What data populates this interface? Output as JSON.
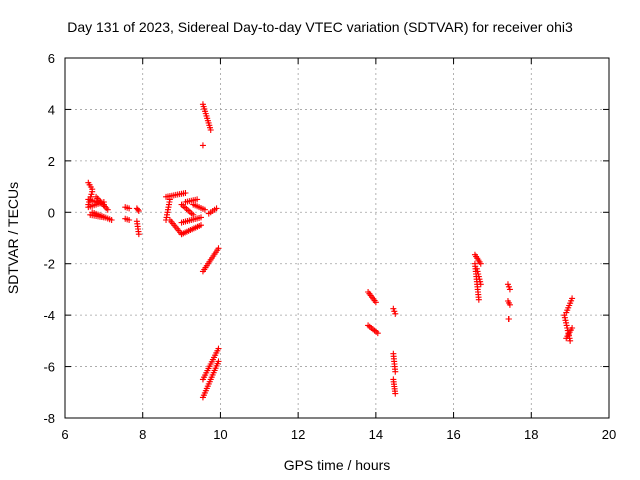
{
  "chart_data": {
    "type": "scatter",
    "title": "Day 131 of 2023, Sidereal Day-to-day VTEC variation (SDTVAR) for receiver ohi3",
    "xlabel": "GPS time / hours",
    "ylabel": "SDTVAR / TECUs",
    "xlim": [
      6,
      20
    ],
    "ylim": [
      -8,
      6
    ],
    "xticks": [
      6,
      8,
      10,
      12,
      14,
      16,
      18,
      20
    ],
    "yticks": [
      -8,
      -6,
      -4,
      -2,
      0,
      2,
      4,
      6
    ],
    "grid": true,
    "marker": "plus",
    "color": "#ff0000",
    "series": [
      {
        "name": "cluster-6.6h",
        "segments": [
          [
            6.6,
            1.15,
            6.7,
            0.9
          ],
          [
            6.6,
            0.5,
            7.0,
            0.3
          ],
          [
            6.6,
            0.2,
            7.0,
            0.4
          ],
          [
            6.65,
            -0.1,
            7.0,
            -0.2
          ],
          [
            6.7,
            0.0,
            7.2,
            -0.3
          ],
          [
            6.8,
            0.6,
            7.1,
            0.1
          ],
          [
            6.6,
            0.3,
            6.7,
            0.8
          ]
        ]
      },
      {
        "name": "cluster-7.6h",
        "segments": [
          [
            7.55,
            0.2,
            7.65,
            0.15
          ],
          [
            7.55,
            -0.25,
            7.65,
            -0.3
          ],
          [
            7.85,
            0.15,
            7.9,
            0.05
          ],
          [
            7.85,
            -0.35,
            7.9,
            -0.85
          ]
        ]
      },
      {
        "name": "arc-8.6h",
        "segments": [
          [
            8.6,
            0.6,
            9.1,
            0.75
          ],
          [
            8.6,
            -0.3,
            8.7,
            0.5
          ],
          [
            8.7,
            -0.3,
            9.0,
            -0.85
          ],
          [
            9.0,
            -0.85,
            9.5,
            -0.5
          ],
          [
            9.0,
            -0.4,
            9.5,
            -0.2
          ],
          [
            9.0,
            0.3,
            9.3,
            -0.1
          ],
          [
            9.3,
            0.3,
            9.6,
            0.1
          ],
          [
            9.1,
            0.4,
            9.4,
            0.5
          ]
        ]
      },
      {
        "name": "streak-9.6h-high",
        "segments": [
          [
            9.55,
            4.2,
            9.75,
            3.2
          ]
        ]
      },
      {
        "name": "streak-9.7h-rise",
        "segments": [
          [
            9.7,
            -0.05,
            9.9,
            0.15
          ]
        ]
      },
      {
        "name": "streak-9.6h-mid",
        "segments": [
          [
            9.55,
            -2.3,
            9.95,
            -1.4
          ]
        ]
      },
      {
        "name": "streak-9.6h-low-a",
        "segments": [
          [
            9.55,
            -6.5,
            9.95,
            -5.3
          ]
        ]
      },
      {
        "name": "streak-9.6h-low-b",
        "segments": [
          [
            9.55,
            -7.2,
            9.95,
            -5.8
          ]
        ]
      },
      {
        "name": "cluster-13.8h",
        "segments": [
          [
            13.8,
            -3.1,
            14.0,
            -3.5
          ],
          [
            13.8,
            -4.4,
            14.05,
            -4.7
          ]
        ]
      },
      {
        "name": "cluster-14.5h",
        "segments": [
          [
            14.45,
            -3.75,
            14.5,
            -3.95
          ],
          [
            14.45,
            -5.5,
            14.5,
            -6.2
          ],
          [
            14.45,
            -6.5,
            14.5,
            -7.05
          ]
        ]
      },
      {
        "name": "cluster-16.5h",
        "segments": [
          [
            16.55,
            -1.65,
            16.7,
            -2.0
          ],
          [
            16.55,
            -2.0,
            16.65,
            -3.4
          ],
          [
            16.6,
            -2.2,
            16.7,
            -2.8
          ]
        ]
      },
      {
        "name": "cluster-17.4h",
        "segments": [
          [
            17.4,
            -2.8,
            17.45,
            -3.0
          ],
          [
            17.4,
            -3.45,
            17.45,
            -3.6
          ],
          [
            17.42,
            -4.15,
            17.42,
            -4.15
          ]
        ]
      },
      {
        "name": "cluster-19.0h",
        "segments": [
          [
            18.9,
            -3.9,
            19.05,
            -3.35
          ],
          [
            18.85,
            -4.0,
            19.0,
            -5.0
          ],
          [
            18.9,
            -4.9,
            19.05,
            -4.5
          ]
        ]
      }
    ],
    "extra_points": [
      [
        9.55,
        2.6
      ]
    ]
  }
}
